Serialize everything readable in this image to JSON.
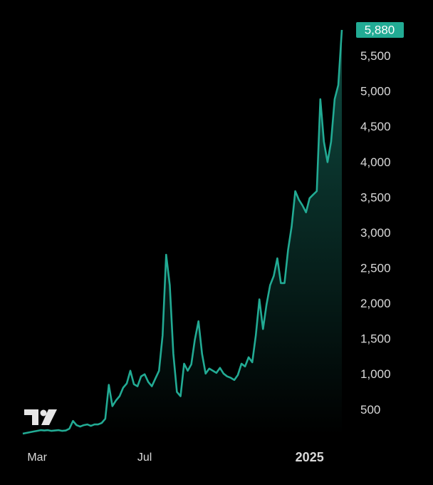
{
  "chart_data": {
    "type": "area",
    "color": "#22ab94",
    "categories": [
      null,
      null,
      null,
      null,
      "Mar",
      null,
      null,
      null,
      null,
      null,
      null,
      null,
      null,
      null,
      null,
      null,
      null,
      null,
      null,
      null,
      null,
      null,
      null,
      null,
      null,
      null,
      null,
      null,
      null,
      null,
      null,
      null,
      null,
      null,
      "Jul",
      null,
      null,
      null,
      null,
      null,
      null,
      null,
      null,
      null,
      null,
      null,
      null,
      null,
      null,
      null,
      null,
      null,
      null,
      null,
      null,
      null,
      null,
      null,
      null,
      null,
      null,
      null,
      null,
      null,
      null,
      null,
      null,
      null,
      null,
      null,
      null,
      null,
      null,
      null,
      null,
      null,
      null,
      null,
      null,
      null,
      "2025",
      null,
      null,
      null,
      null,
      null,
      null,
      null,
      null,
      null
    ],
    "values": [
      170,
      180,
      190,
      200,
      210,
      220,
      215,
      220,
      210,
      215,
      220,
      210,
      215,
      240,
      350,
      290,
      270,
      290,
      300,
      280,
      300,
      300,
      320,
      380,
      860,
      560,
      640,
      700,
      820,
      880,
      1060,
      870,
      840,
      980,
      1010,
      900,
      840,
      950,
      1060,
      1560,
      2700,
      2270,
      1300,
      760,
      700,
      1160,
      1060,
      1150,
      1500,
      1760,
      1300,
      1020,
      1090,
      1060,
      1030,
      1100,
      1020,
      980,
      960,
      930,
      1000,
      1160,
      1120,
      1250,
      1180,
      1560,
      2070,
      1650,
      2000,
      2270,
      2400,
      2650,
      2300,
      2300,
      2770,
      3100,
      3600,
      3480,
      3400,
      3300,
      3500,
      3550,
      3600,
      4900,
      4300,
      4010,
      4300,
      4900,
      5100,
      5880
    ],
    "ylim": [
      150,
      5950
    ],
    "yticks": [
      500,
      {
        "value": 1000,
        "label": "1,000"
      },
      {
        "value": 1500,
        "label": "1,500"
      },
      {
        "value": 2000,
        "label": "2,000"
      },
      {
        "value": 2500,
        "label": "2,500"
      },
      {
        "value": 3000,
        "label": "3,000"
      },
      {
        "value": 3500,
        "label": "3,500"
      },
      {
        "value": 4000,
        "label": "4,000"
      },
      {
        "value": 4500,
        "label": "4,500"
      },
      {
        "value": 5000,
        "label": "5,000"
      },
      {
        "value": 5500,
        "label": "5,500"
      }
    ],
    "price_label": {
      "value": 5880,
      "label": "5,880"
    }
  }
}
